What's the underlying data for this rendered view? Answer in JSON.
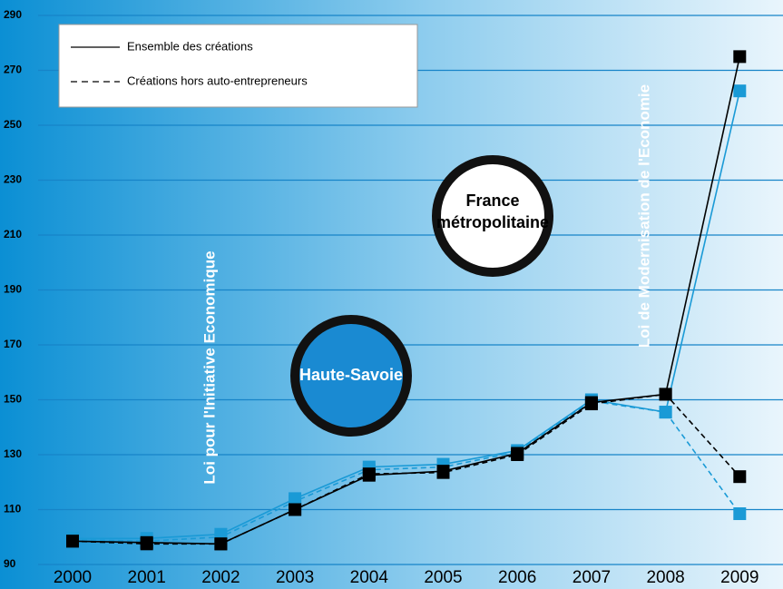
{
  "chart_data": {
    "type": "line",
    "categories": [
      "2000",
      "2001",
      "2002",
      "2003",
      "2004",
      "2005",
      "2006",
      "2007",
      "2008",
      "2009"
    ],
    "series": [
      {
        "color": "#1a9ad6",
        "dash": false,
        "values": [
          99.5,
          99.5,
          101,
          114,
          125.5,
          126.5,
          131.5,
          150,
          145.5,
          262.5
        ]
      },
      {
        "color": "#1a9ad6",
        "dash": true,
        "values": [
          99,
          98.5,
          100,
          113,
          124.5,
          125.5,
          131,
          149.5,
          145.5,
          108.5
        ]
      },
      {
        "color": "#000000",
        "dash": false,
        "values": [
          98.5,
          98,
          97.5,
          110,
          122.5,
          124,
          130.5,
          149,
          152,
          275
        ]
      },
      {
        "color": "#000000",
        "dash": true,
        "values": [
          98.5,
          97.5,
          97.5,
          110,
          123,
          123.5,
          130,
          148.5,
          152,
          122
        ]
      }
    ],
    "legend": [
      {
        "label": "Ensemble des créations",
        "dash": false
      },
      {
        "label": "Créations hors auto-entrepreneurs",
        "dash": true
      }
    ],
    "annotations": {
      "france": [
        "France",
        "métropolitaine"
      ],
      "region": "Haute-Savoie",
      "law1": "Loi pour l'Initiative Economique",
      "law2": "Loi de Modernisation de l'Economie"
    },
    "ylim": [
      90,
      290
    ],
    "yticks": [
      90,
      110,
      130,
      150,
      170,
      190,
      210,
      230,
      250,
      270,
      290
    ],
    "grid": true
  }
}
